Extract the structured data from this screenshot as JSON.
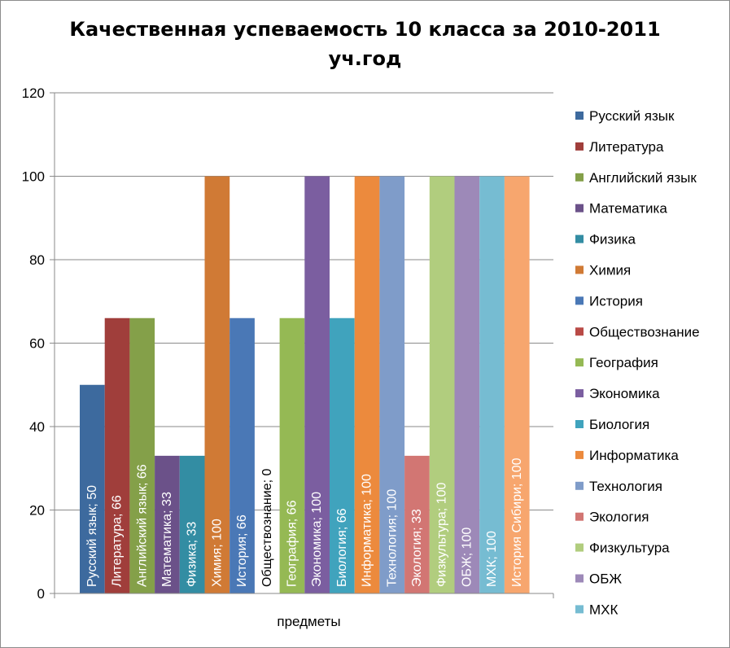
{
  "chart_data": {
    "type": "bar",
    "title": "Качественная успеваемость 10 класса за 2010-2011",
    "title_line2": "уч.год",
    "xlabel": "предметы",
    "ylabel": "",
    "ylim": [
      0,
      120
    ],
    "yticks": [
      0,
      20,
      40,
      60,
      80,
      100,
      120
    ],
    "grid": true,
    "legend_position": "right",
    "categories": [
      "предметы"
    ],
    "series": [
      {
        "name": "Русский язык",
        "values": [
          50
        ],
        "label": "Русский язык; 50",
        "color": "#3d6a9e"
      },
      {
        "name": "Литература",
        "values": [
          66
        ],
        "label": "Литература; 66",
        "color": "#a03e3b"
      },
      {
        "name": "Английский язык",
        "values": [
          66
        ],
        "label": "Английский язык; 66",
        "color": "#84a049"
      },
      {
        "name": "Математика",
        "values": [
          33
        ],
        "label": "Математика; 33",
        "color": "#6b5189"
      },
      {
        "name": "Физика",
        "values": [
          33
        ],
        "label": "Физика; 33",
        "color": "#338da3"
      },
      {
        "name": "Химия",
        "values": [
          100
        ],
        "label": "Химия; 100",
        "color": "#d07a35"
      },
      {
        "name": "История",
        "values": [
          66
        ],
        "label": "История; 66",
        "color": "#4a78b6"
      },
      {
        "name": "Обществознание",
        "values": [
          0
        ],
        "label": "Обществознание; 0",
        "color": "#b94a46"
      },
      {
        "name": "География",
        "values": [
          66
        ],
        "label": "География; 66",
        "color": "#95b954"
      },
      {
        "name": "Экономика",
        "values": [
          100
        ],
        "label": "Экономика; 100",
        "color": "#7b5ea0"
      },
      {
        "name": "Биология",
        "values": [
          66
        ],
        "label": "Биология; 66",
        "color": "#40a3bd"
      },
      {
        "name": "Информатика",
        "values": [
          100
        ],
        "label": "Информатика; 100",
        "color": "#ec8a3d"
      },
      {
        "name": "Технология",
        "values": [
          100
        ],
        "label": "Технология; 100",
        "color": "#7f9cc9"
      },
      {
        "name": "Экология",
        "values": [
          33
        ],
        "label": "Экология; 33",
        "color": "#d27673"
      },
      {
        "name": "Физкультура",
        "values": [
          100
        ],
        "label": "Физкультура; 100",
        "color": "#b1cd7e"
      },
      {
        "name": "ОБЖ",
        "values": [
          100
        ],
        "label": "ОБЖ; 100",
        "color": "#9d89b8"
      },
      {
        "name": "МХК",
        "values": [
          100
        ],
        "label": "МХК; 100",
        "color": "#76bcd2"
      },
      {
        "name": "История Сибири",
        "values": [
          100
        ],
        "label": "История Сибири; 100",
        "color": "#f7a66e"
      }
    ],
    "legend_visible_count": 17
  }
}
